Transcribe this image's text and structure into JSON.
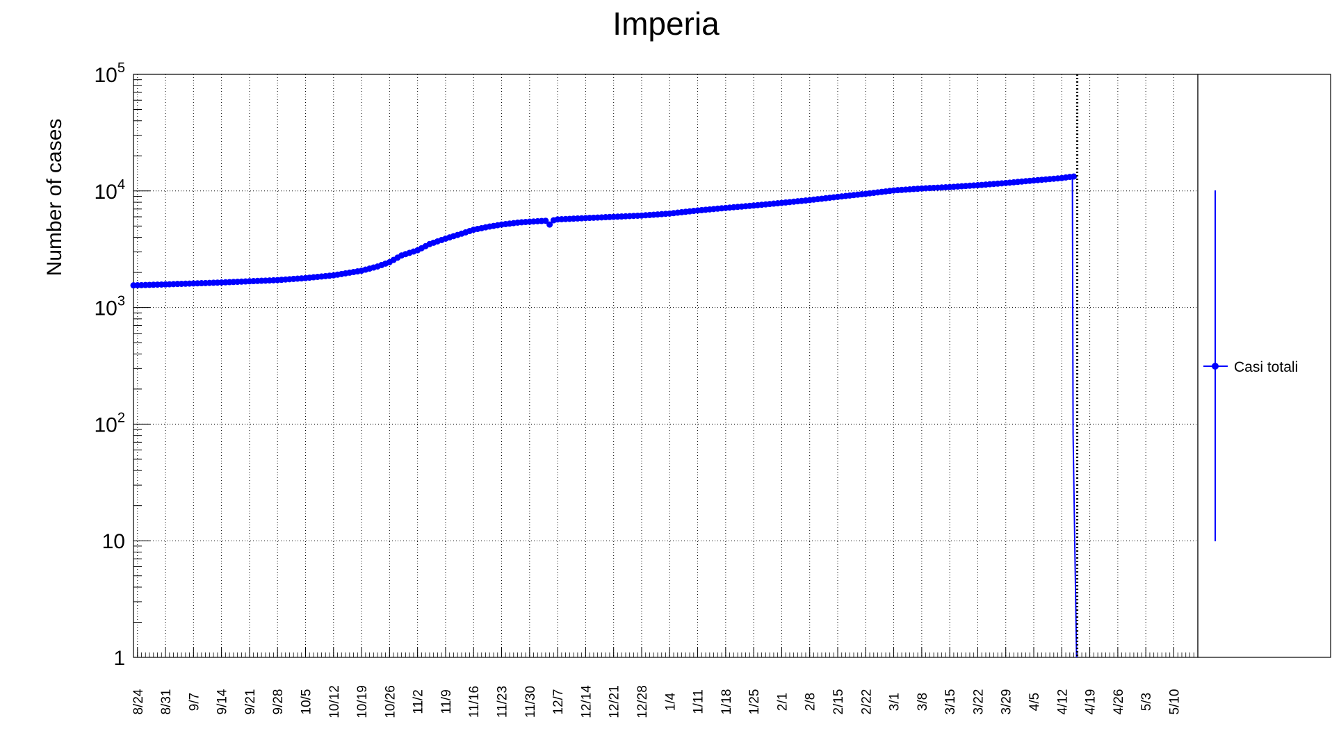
{
  "chart_data": {
    "type": "line",
    "title": "Imperia",
    "ylabel": "Number of cases",
    "xlabel": "",
    "yscale": "log",
    "ylim": [
      1,
      100000
    ],
    "xlim": [
      "2020-08-23",
      "2021-05-16"
    ],
    "grid": true,
    "legend_position": "right",
    "x_tick_labels": [
      "8/24",
      "8/31",
      "9/7",
      "9/14",
      "9/21",
      "9/28",
      "10/5",
      "10/12",
      "10/19",
      "10/26",
      "11/2",
      "11/9",
      "11/16",
      "11/23",
      "11/30",
      "12/7",
      "12/14",
      "12/21",
      "12/28",
      "1/4",
      "1/11",
      "1/18",
      "1/25",
      "2/1",
      "2/8",
      "2/15",
      "2/22",
      "3/1",
      "3/8",
      "3/15",
      "3/22",
      "3/29",
      "4/5",
      "4/12",
      "4/19",
      "4/26",
      "5/3",
      "5/10"
    ],
    "x_tick_dates": [
      "2020-08-24",
      "2020-08-31",
      "2020-09-07",
      "2020-09-14",
      "2020-09-21",
      "2020-09-28",
      "2020-10-05",
      "2020-10-12",
      "2020-10-19",
      "2020-10-26",
      "2020-11-02",
      "2020-11-09",
      "2020-11-16",
      "2020-11-23",
      "2020-11-30",
      "2020-12-07",
      "2020-12-14",
      "2020-12-21",
      "2020-12-28",
      "2021-01-04",
      "2021-01-11",
      "2021-01-18",
      "2021-01-25",
      "2021-02-01",
      "2021-02-08",
      "2021-02-15",
      "2021-02-22",
      "2021-03-01",
      "2021-03-08",
      "2021-03-15",
      "2021-03-22",
      "2021-03-29",
      "2021-04-05",
      "2021-04-12",
      "2021-04-19",
      "2021-04-26",
      "2021-05-03",
      "2021-05-10"
    ],
    "y_tick_labels": [
      {
        "value": 1,
        "base": "1",
        "exp": ""
      },
      {
        "value": 10,
        "base": "10",
        "exp": ""
      },
      {
        "value": 100,
        "base": "10",
        "exp": "2"
      },
      {
        "value": 1000,
        "base": "10",
        "exp": "3"
      },
      {
        "value": 10000,
        "base": "10",
        "exp": "4"
      },
      {
        "value": 100000,
        "base": "10",
        "exp": "5"
      }
    ],
    "vertical_marker_date": "2021-04-15",
    "series": [
      {
        "name": "Casi totali",
        "color": "#0000ff",
        "x": [
          "2020-08-23",
          "2020-08-31",
          "2020-09-07",
          "2020-09-14",
          "2020-09-21",
          "2020-09-28",
          "2020-10-05",
          "2020-10-12",
          "2020-10-19",
          "2020-10-23",
          "2020-10-26",
          "2020-10-29",
          "2020-11-02",
          "2020-11-05",
          "2020-11-09",
          "2020-11-13",
          "2020-11-16",
          "2020-11-20",
          "2020-11-23",
          "2020-11-27",
          "2020-11-30",
          "2020-12-04",
          "2020-12-05",
          "2020-12-06",
          "2020-12-07",
          "2020-12-14",
          "2020-12-21",
          "2020-12-28",
          "2021-01-04",
          "2021-01-11",
          "2021-01-18",
          "2021-01-25",
          "2021-02-01",
          "2021-02-08",
          "2021-02-15",
          "2021-02-22",
          "2021-03-01",
          "2021-03-08",
          "2021-03-15",
          "2021-03-22",
          "2021-03-29",
          "2021-04-05",
          "2021-04-12",
          "2021-04-14",
          "2021-04-15"
        ],
        "y": [
          1550,
          1580,
          1610,
          1640,
          1680,
          1720,
          1790,
          1890,
          2070,
          2250,
          2450,
          2800,
          3100,
          3500,
          3900,
          4300,
          4650,
          4950,
          5150,
          5350,
          5450,
          5550,
          5150,
          5600,
          5700,
          5850,
          6000,
          6150,
          6400,
          6800,
          7150,
          7500,
          7900,
          8350,
          8900,
          9450,
          10100,
          10500,
          10800,
          11200,
          11700,
          12300,
          12900,
          13200,
          13300
        ]
      }
    ]
  }
}
